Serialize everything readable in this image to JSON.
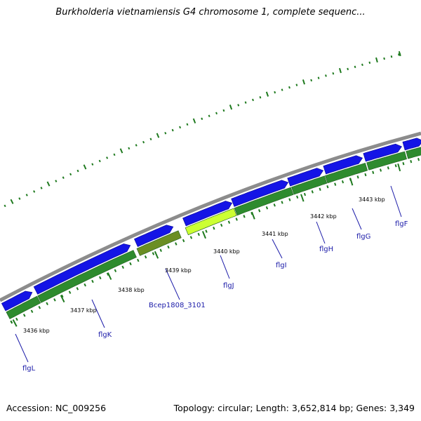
{
  "title": "Burkholderia vietnamiensis G4 chromosome 1, complete sequenc...",
  "footer": {
    "accession": "Accession: NC_009256",
    "stats": "Topology: circular; Length: 3,652,814 bp; Genes: 3,349"
  },
  "colors": {
    "backbone": "#8c8c8c",
    "forward_gene": "#1414e6",
    "reverse_gene": "#2e8b2e",
    "highlight_gene": "#ccff33",
    "pseudo_gene": "#6b8e23",
    "tick": "#1f7a1f",
    "label": "#1a1aa8"
  },
  "kbp_labels": [
    "3436 kbp",
    "3437 kbp",
    "3438 kbp",
    "3439 kbp",
    "3440 kbp",
    "3441 kbp",
    "3442 kbp",
    "3443 kbp"
  ],
  "gene_labels": [
    "flgL",
    "flgK",
    "Bcep1808_3101",
    "flgJ",
    "flgI",
    "flgH",
    "flgG",
    "flgF"
  ]
}
